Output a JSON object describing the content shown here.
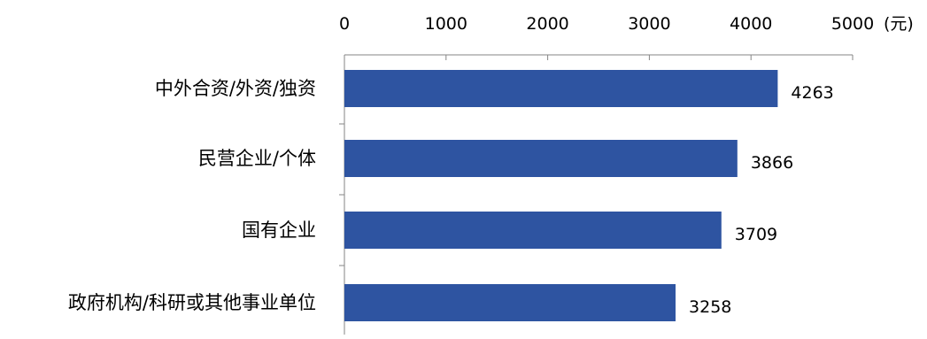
{
  "chart_data": {
    "type": "bar",
    "orientation": "horizontal",
    "categories": [
      "中外合资/外资/独资",
      "民营企业/个体",
      "国有企业",
      "政府机构/科研或其他事业单位"
    ],
    "values": [
      4263,
      3866,
      3709,
      3258
    ],
    "x_ticks": [
      "0",
      "1000",
      "2000",
      "3000",
      "4000",
      "5000"
    ],
    "xlim": [
      0,
      5000
    ],
    "unit": "(元)",
    "bar_color": "#2E54A1",
    "grid": false,
    "legend": "none",
    "axis_position": "top"
  }
}
